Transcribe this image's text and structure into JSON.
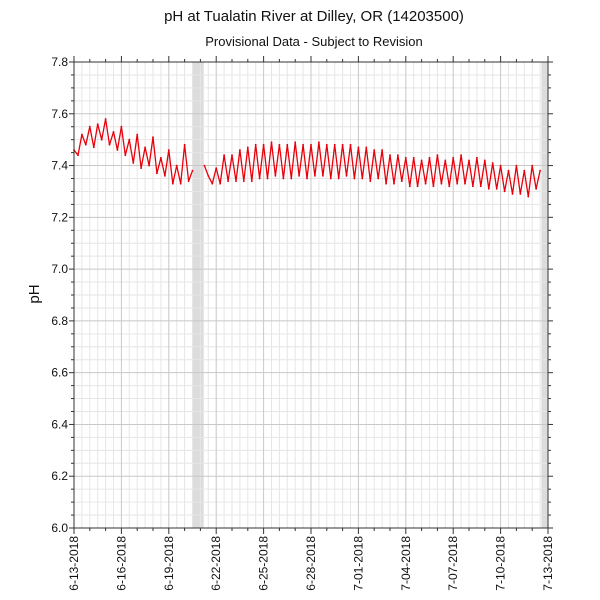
{
  "chart_data": {
    "type": "line",
    "title": "pH at Tualatin River at Dilley, OR (14203500)",
    "subtitle": "Provisional Data - Subject to Revision",
    "ylabel": "pH",
    "xlabel": "",
    "ylim": [
      6.0,
      7.8
    ],
    "yticks": [
      "6.0",
      "6.2",
      "6.4",
      "6.6",
      "6.8",
      "7.0",
      "7.2",
      "7.4",
      "7.6",
      "7.8"
    ],
    "y_minor_step": 0.05,
    "xlim": [
      "2018-06-13",
      "2018-07-13"
    ],
    "xticks": [
      {
        "date": "2018-06-13",
        "label": "6-13-2018"
      },
      {
        "date": "2018-06-16",
        "label": "6-16-2018"
      },
      {
        "date": "2018-06-19",
        "label": "6-19-2018"
      },
      {
        "date": "2018-06-22",
        "label": "6-22-2018"
      },
      {
        "date": "2018-06-25",
        "label": "6-25-2018"
      },
      {
        "date": "2018-06-28",
        "label": "6-28-2018"
      },
      {
        "date": "2018-07-01",
        "label": "7-01-2018"
      },
      {
        "date": "2018-07-04",
        "label": "7-04-2018"
      },
      {
        "date": "2018-07-07",
        "label": "7-07-2018"
      },
      {
        "date": "2018-07-10",
        "label": "7-10-2018"
      },
      {
        "date": "2018-07-13",
        "label": "7-13-2018"
      }
    ],
    "x_minor_step_days": 0.5,
    "grid": true,
    "missing_data_bands": [
      {
        "start": "2018-06-20T12:00",
        "end": "2018-06-21T05:00"
      },
      {
        "start": "2018-07-12T14:00",
        "end": "2018-07-13T00:00"
      }
    ],
    "series": [
      {
        "color": "#e8000b",
        "x": [
          "2018-06-13T00:00",
          "2018-06-13T06:00",
          "2018-06-13T12:00",
          "2018-06-13T18:00",
          "2018-06-14T00:00",
          "2018-06-14T06:00",
          "2018-06-14T12:00",
          "2018-06-14T18:00",
          "2018-06-15T00:00",
          "2018-06-15T06:00",
          "2018-06-15T12:00",
          "2018-06-15T18:00",
          "2018-06-16T00:00",
          "2018-06-16T06:00",
          "2018-06-16T12:00",
          "2018-06-16T18:00",
          "2018-06-17T00:00",
          "2018-06-17T06:00",
          "2018-06-17T12:00",
          "2018-06-17T18:00",
          "2018-06-18T00:00",
          "2018-06-18T06:00",
          "2018-06-18T12:00",
          "2018-06-18T18:00",
          "2018-06-19T00:00",
          "2018-06-19T06:00",
          "2018-06-19T12:00",
          "2018-06-19T18:00",
          "2018-06-20T00:00",
          "2018-06-20T06:00",
          "2018-06-20T12:00",
          null,
          "2018-06-21T06:00",
          "2018-06-21T12:00",
          "2018-06-21T18:00",
          "2018-06-22T00:00",
          "2018-06-22T06:00",
          "2018-06-22T12:00",
          "2018-06-22T18:00",
          "2018-06-23T00:00",
          "2018-06-23T06:00",
          "2018-06-23T12:00",
          "2018-06-23T18:00",
          "2018-06-24T00:00",
          "2018-06-24T06:00",
          "2018-06-24T12:00",
          "2018-06-24T18:00",
          "2018-06-25T00:00",
          "2018-06-25T06:00",
          "2018-06-25T12:00",
          "2018-06-25T18:00",
          "2018-06-26T00:00",
          "2018-06-26T06:00",
          "2018-06-26T12:00",
          "2018-06-26T18:00",
          "2018-06-27T00:00",
          "2018-06-27T06:00",
          "2018-06-27T12:00",
          "2018-06-27T18:00",
          "2018-06-28T00:00",
          "2018-06-28T06:00",
          "2018-06-28T12:00",
          "2018-06-28T18:00",
          "2018-06-29T00:00",
          "2018-06-29T06:00",
          "2018-06-29T12:00",
          "2018-06-29T18:00",
          "2018-06-30T00:00",
          "2018-06-30T06:00",
          "2018-06-30T12:00",
          "2018-06-30T18:00",
          "2018-07-01T00:00",
          "2018-07-01T06:00",
          "2018-07-01T12:00",
          "2018-07-01T18:00",
          "2018-07-02T00:00",
          "2018-07-02T06:00",
          "2018-07-02T12:00",
          "2018-07-02T18:00",
          "2018-07-03T00:00",
          "2018-07-03T06:00",
          "2018-07-03T12:00",
          "2018-07-03T18:00",
          "2018-07-04T00:00",
          "2018-07-04T06:00",
          "2018-07-04T12:00",
          "2018-07-04T18:00",
          "2018-07-05T00:00",
          "2018-07-05T06:00",
          "2018-07-05T12:00",
          "2018-07-05T18:00",
          "2018-07-06T00:00",
          "2018-07-06T06:00",
          "2018-07-06T12:00",
          "2018-07-06T18:00",
          "2018-07-07T00:00",
          "2018-07-07T06:00",
          "2018-07-07T12:00",
          "2018-07-07T18:00",
          "2018-07-08T00:00",
          "2018-07-08T06:00",
          "2018-07-08T12:00",
          "2018-07-08T18:00",
          "2018-07-09T00:00",
          "2018-07-09T06:00",
          "2018-07-09T12:00",
          "2018-07-09T18:00",
          "2018-07-10T00:00",
          "2018-07-10T06:00",
          "2018-07-10T12:00",
          "2018-07-10T18:00",
          "2018-07-11T00:00",
          "2018-07-11T06:00",
          "2018-07-11T12:00",
          "2018-07-11T18:00",
          "2018-07-12T00:00",
          "2018-07-12T06:00",
          "2018-07-12T12:00"
        ],
        "y": [
          7.46,
          7.44,
          7.52,
          7.48,
          7.55,
          7.47,
          7.56,
          7.5,
          7.58,
          7.48,
          7.53,
          7.46,
          7.55,
          7.44,
          7.5,
          7.41,
          7.52,
          7.39,
          7.47,
          7.4,
          7.51,
          7.37,
          7.43,
          7.36,
          7.46,
          7.33,
          7.4,
          7.33,
          7.48,
          7.34,
          7.38,
          null,
          7.4,
          7.36,
          7.33,
          7.39,
          7.33,
          7.44,
          7.34,
          7.44,
          7.34,
          7.46,
          7.34,
          7.47,
          7.34,
          7.48,
          7.35,
          7.48,
          7.35,
          7.49,
          7.36,
          7.48,
          7.35,
          7.48,
          7.35,
          7.49,
          7.36,
          7.48,
          7.35,
          7.48,
          7.36,
          7.49,
          7.36,
          7.48,
          7.35,
          7.48,
          7.35,
          7.48,
          7.36,
          7.48,
          7.35,
          7.47,
          7.35,
          7.47,
          7.34,
          7.46,
          7.35,
          7.46,
          7.33,
          7.44,
          7.33,
          7.44,
          7.34,
          7.43,
          7.32,
          7.43,
          7.32,
          7.42,
          7.33,
          7.43,
          7.32,
          7.44,
          7.33,
          7.42,
          7.32,
          7.43,
          7.33,
          7.44,
          7.33,
          7.42,
          7.32,
          7.43,
          7.32,
          7.42,
          7.31,
          7.41,
          7.31,
          7.4,
          7.3,
          7.38,
          7.29,
          7.4,
          7.29,
          7.38,
          7.28,
          7.4,
          7.31,
          7.38
        ]
      }
    ]
  }
}
